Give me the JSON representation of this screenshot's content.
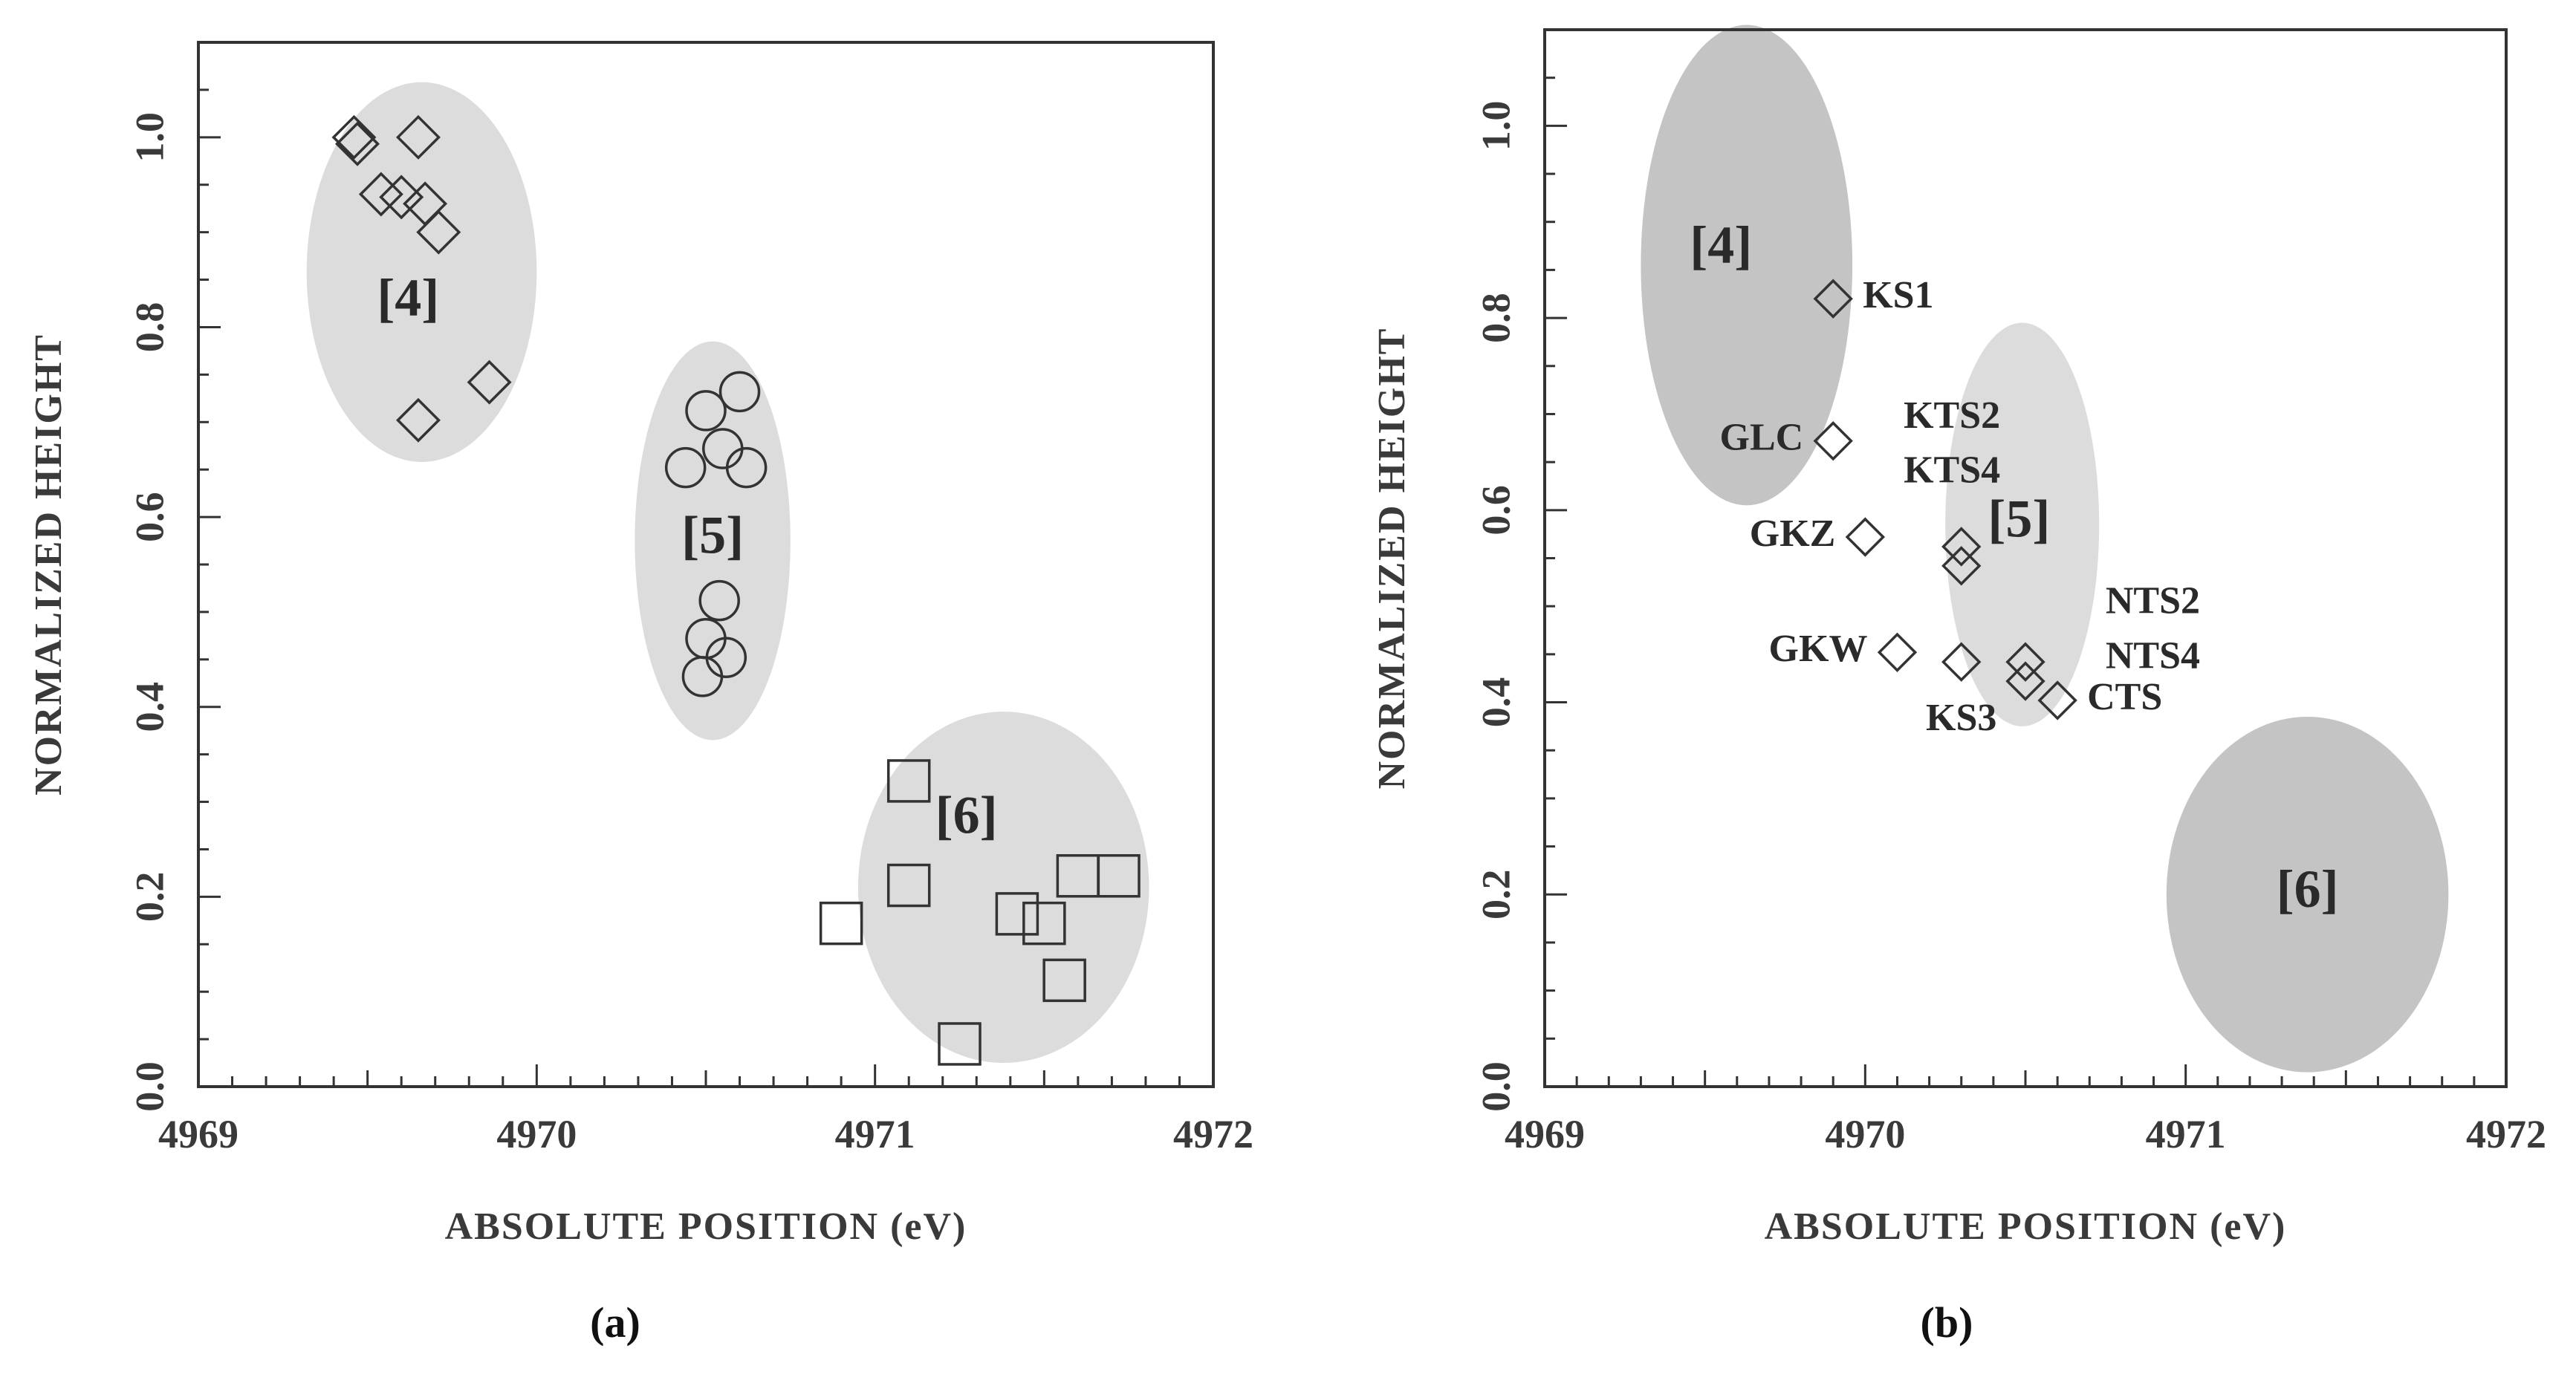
{
  "colors": {
    "axis": "#333333",
    "marker": "#333333",
    "region_light": "#dcdcdc",
    "region_dark": "#c4c4c4",
    "text": "#2a2a2a"
  },
  "chart_data": [
    {
      "panel": "(a)",
      "type": "scatter",
      "xlabel": "ABSOLUTE POSITION (eV)",
      "ylabel": "NORMALIZED HEIGHT",
      "xlim": [
        4969,
        4972
      ],
      "ylim": [
        0,
        1.1
      ],
      "xticks": [
        "4969",
        "4970",
        "4971",
        "4972"
      ],
      "yticks": [
        "0.0",
        "0.2",
        "0.4",
        "0.6",
        "0.8",
        "1.0"
      ],
      "regions": [
        {
          "label": "[4]",
          "cx": 4969.66,
          "cy": 0.858,
          "rx": 0.34,
          "ry": 0.2,
          "shade": "light",
          "label_x": 4969.62,
          "label_y": 0.825
        },
        {
          "label": "[5]",
          "cx": 4970.52,
          "cy": 0.575,
          "rx": 0.23,
          "ry": 0.21,
          "shade": "light",
          "label_x": 4970.52,
          "label_y": 0.575
        },
        {
          "label": "[6]",
          "cx": 4971.38,
          "cy": 0.21,
          "rx": 0.43,
          "ry": 0.185,
          "shade": "light",
          "label_x": 4971.27,
          "label_y": 0.28
        }
      ],
      "series": [
        {
          "marker": "diamond",
          "points": [
            {
              "x": 4969.46,
              "y": 1.0
            },
            {
              "x": 4969.47,
              "y": 0.993
            },
            {
              "x": 4969.65,
              "y": 1.0
            },
            {
              "x": 4969.54,
              "y": 0.94
            },
            {
              "x": 4969.6,
              "y": 0.937
            },
            {
              "x": 4969.67,
              "y": 0.93
            },
            {
              "x": 4969.71,
              "y": 0.9
            },
            {
              "x": 4969.86,
              "y": 0.742
            },
            {
              "x": 4969.65,
              "y": 0.702
            }
          ]
        },
        {
          "marker": "circle",
          "points": [
            {
              "x": 4970.6,
              "y": 0.732
            },
            {
              "x": 4970.5,
              "y": 0.712
            },
            {
              "x": 4970.55,
              "y": 0.672
            },
            {
              "x": 4970.44,
              "y": 0.652
            },
            {
              "x": 4970.62,
              "y": 0.652
            },
            {
              "x": 4970.54,
              "y": 0.512
            },
            {
              "x": 4970.5,
              "y": 0.472
            },
            {
              "x": 4970.56,
              "y": 0.452
            },
            {
              "x": 4970.49,
              "y": 0.432
            }
          ]
        },
        {
          "marker": "square",
          "points": [
            {
              "x": 4971.1,
              "y": 0.322
            },
            {
              "x": 4971.1,
              "y": 0.212
            },
            {
              "x": 4971.6,
              "y": 0.222
            },
            {
              "x": 4971.72,
              "y": 0.222
            },
            {
              "x": 4970.9,
              "y": 0.172
            },
            {
              "x": 4971.42,
              "y": 0.182
            },
            {
              "x": 4971.5,
              "y": 0.172
            },
            {
              "x": 4971.56,
              "y": 0.112
            },
            {
              "x": 4971.25,
              "y": 0.045
            }
          ]
        }
      ]
    },
    {
      "panel": "(b)",
      "type": "scatter",
      "xlabel": "ABSOLUTE POSITION (eV)",
      "ylabel": "NORMALIZED HEIGHT",
      "xlim": [
        4969,
        4972
      ],
      "ylim": [
        0,
        1.1
      ],
      "xticks": [
        "4969",
        "4970",
        "4971",
        "4972"
      ],
      "yticks": [
        "0.0",
        "0.2",
        "0.4",
        "0.6",
        "0.8",
        "1.0"
      ],
      "regions": [
        {
          "label": "[4]",
          "cx": 4969.63,
          "cy": 0.855,
          "rx": 0.33,
          "ry": 0.25,
          "shade": "dark",
          "label_x": 4969.55,
          "label_y": 0.87
        },
        {
          "label": "[5]",
          "cx": 4970.49,
          "cy": 0.585,
          "rx": 0.24,
          "ry": 0.21,
          "shade": "light",
          "label_x": 4970.48,
          "label_y": 0.585
        },
        {
          "label": "[6]",
          "cx": 4971.38,
          "cy": 0.2,
          "rx": 0.44,
          "ry": 0.185,
          "shade": "dark",
          "label_x": 4971.38,
          "label_y": 0.2
        }
      ],
      "series": [
        {
          "marker": "diamond",
          "points": [
            {
              "x": 4969.9,
              "y": 0.82,
              "label": "KS1",
              "anchor": "right"
            },
            {
              "x": 4969.9,
              "y": 0.672,
              "label": "GLC",
              "anchor": "left"
            },
            {
              "x": 4970.0,
              "y": 0.572,
              "label": "GKZ",
              "anchor": "left"
            },
            {
              "x": 4970.3,
              "y": 0.562
            },
            {
              "x": 4970.3,
              "y": 0.542
            },
            {
              "x": 4970.1,
              "y": 0.452,
              "label": "GKW",
              "anchor": "left"
            },
            {
              "x": 4970.3,
              "y": 0.442,
              "label": "KS3",
              "anchor": "below"
            },
            {
              "x": 4970.5,
              "y": 0.442
            },
            {
              "x": 4970.5,
              "y": 0.422
            },
            {
              "x": 4970.6,
              "y": 0.402,
              "label": "CTS",
              "anchor": "right"
            }
          ]
        }
      ],
      "free_labels": [
        {
          "text": "KTS2",
          "x": 4970.12,
          "y": 0.695
        },
        {
          "text": "KTS4",
          "x": 4970.12,
          "y": 0.638
        },
        {
          "text": "NTS2",
          "x": 4970.75,
          "y": 0.502
        },
        {
          "text": "NTS4",
          "x": 4970.75,
          "y": 0.445
        }
      ]
    }
  ]
}
